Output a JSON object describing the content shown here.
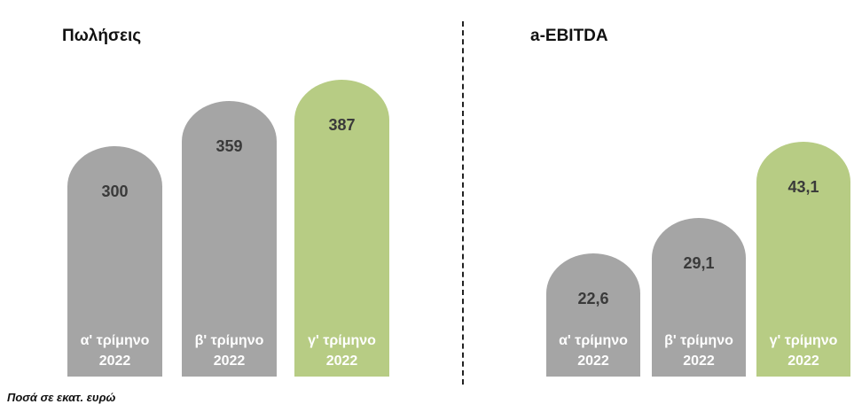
{
  "colors": {
    "grey_bar": "#a5a5a5",
    "green_bar": "#b7cc84"
  },
  "footnote": "Ποσά σε εκατ. ευρώ",
  "chart_data": [
    {
      "type": "bar",
      "title": "Πωλήσεις",
      "categories": [
        "α' τρίμηνο 2022",
        "β' τρίμηνο 2022",
        "γ' τρίμηνο 2022"
      ],
      "category_lines": [
        [
          "α' τρίμηνο",
          "2022"
        ],
        [
          "β' τρίμηνο",
          "2022"
        ],
        [
          "γ' τρίμηνο",
          "2022"
        ]
      ],
      "values": [
        300,
        359,
        387
      ],
      "value_labels": [
        "300",
        "359",
        "387"
      ],
      "bar_colors": [
        "#a5a5a5",
        "#a5a5a5",
        "#b7cc84"
      ],
      "ylim": [
        0,
        400
      ]
    },
    {
      "type": "bar",
      "title": "a-EBITDA",
      "categories": [
        "α' τρίμηνο 2022",
        "β' τρίμηνο 2022",
        "γ' τρίμηνο 2022"
      ],
      "category_lines": [
        [
          "α' τρίμηνο",
          "2022"
        ],
        [
          "β' τρίμηνο",
          "2022"
        ],
        [
          "γ' τρίμηνο",
          "2022"
        ]
      ],
      "values": [
        22.6,
        29.1,
        43.1
      ],
      "value_labels": [
        "22,6",
        "29,1",
        "43,1"
      ],
      "bar_colors": [
        "#a5a5a5",
        "#a5a5a5",
        "#b7cc84"
      ],
      "ylim": [
        0,
        45
      ]
    }
  ]
}
